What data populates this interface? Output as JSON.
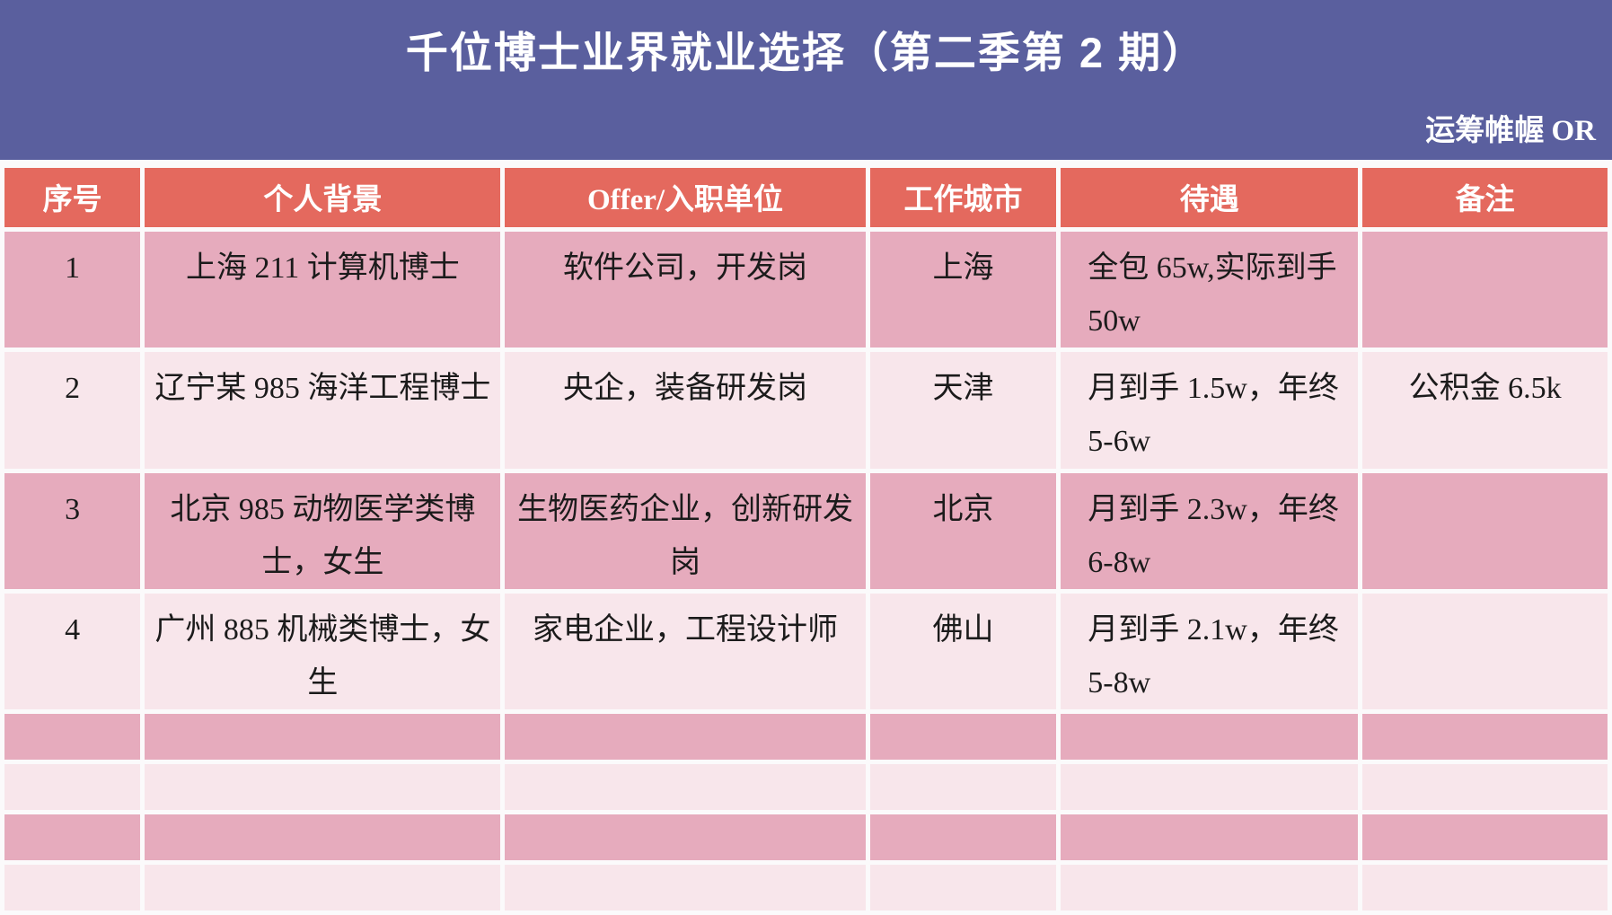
{
  "banner": {
    "title": "千位博士业界就业选择（第二季第 2 期）",
    "watermark": "运筹帷幄 OR"
  },
  "colors": {
    "banner_bg": "#5a5f9e",
    "header_bg": "#e4695e",
    "row_dark_pink": "#e6abbd",
    "row_light_pink": "#f8e6eb",
    "gap_white": "#fbfafb",
    "header_text": "#ffffff",
    "cell_text": "#1b1b1b"
  },
  "table": {
    "columns": [
      {
        "key": "index",
        "label": "序号",
        "width_pct": 8.6
      },
      {
        "key": "background",
        "label": "个人背景",
        "width_pct": 22.5
      },
      {
        "key": "offer",
        "label": "Offer/入职单位",
        "width_pct": 22.8
      },
      {
        "key": "city",
        "label": "工作城市",
        "width_pct": 11.8
      },
      {
        "key": "salary",
        "label": "待遇",
        "width_pct": 18.8
      },
      {
        "key": "note",
        "label": "备注",
        "width_pct": 15.5
      }
    ],
    "rows": [
      {
        "index": "1",
        "background": "上海 211 计算机博士",
        "offer": "软件公司，开发岗",
        "city": "上海",
        "salary": "全包 65w,实际到手 50w",
        "note": ""
      },
      {
        "index": "2",
        "background": "辽宁某 985 海洋工程博士",
        "offer": "央企，装备研发岗",
        "city": "天津",
        "salary": "月到手 1.5w，年终 5-6w",
        "note": "公积金 6.5k"
      },
      {
        "index": "3",
        "background": "北京 985 动物医学类博士，女生",
        "offer": "生物医药企业，创新研发岗",
        "city": "北京",
        "salary": "月到手 2.3w，年终 6-8w",
        "note": ""
      },
      {
        "index": "4",
        "background": "广州 885 机械类博士，女生",
        "offer": "家电企业，工程设计师",
        "city": "佛山",
        "salary": "月到手 2.1w，年终 5-8w",
        "note": ""
      }
    ],
    "empty_row_count": 4
  },
  "chart_data": {
    "type": "table",
    "title": "千位博士业界就业选择（第二季第 2 期）",
    "columns": [
      "序号",
      "个人背景",
      "Offer/入职单位",
      "工作城市",
      "待遇",
      "备注"
    ],
    "rows": [
      [
        "1",
        "上海 211 计算机博士",
        "软件公司，开发岗",
        "上海",
        "全包 65w,实际到手 50w",
        ""
      ],
      [
        "2",
        "辽宁某 985 海洋工程博士",
        "央企，装备研发岗",
        "天津",
        "月到手 1.5w，年终 5-6w",
        "公积金 6.5k"
      ],
      [
        "3",
        "北京 985 动物医学类博士，女生",
        "生物医药企业，创新研发岗",
        "北京",
        "月到手 2.3w，年终 6-8w",
        ""
      ],
      [
        "4",
        "广州 885 机械类博士，女生",
        "家电企业，工程设计师",
        "佛山",
        "月到手 2.1w，年终 5-8w",
        ""
      ]
    ]
  }
}
